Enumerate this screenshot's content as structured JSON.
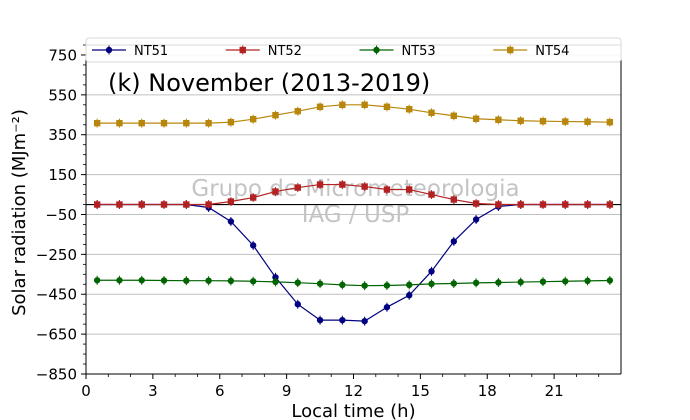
{
  "chart_data": {
    "type": "line",
    "title": "(k) November (2013-2019)",
    "xlabel": "Local time (h)",
    "ylabel": "Solar radiation (MJm⁻²)",
    "watermark": [
      "Grupo de Micrometeorologia",
      "IAG / USP"
    ],
    "xlim": [
      0,
      24
    ],
    "ylim": [
      -850,
      800
    ],
    "xticks": [
      0,
      3,
      6,
      9,
      12,
      15,
      18,
      21
    ],
    "yticks": [
      750,
      550,
      350,
      150,
      -50,
      -250,
      -450,
      -650,
      -850
    ],
    "grid": "horizontal",
    "zero_line": true,
    "legend_position": "top",
    "x": [
      0.5,
      1.5,
      2.5,
      3.5,
      4.5,
      5.5,
      6.5,
      7.5,
      8.5,
      9.5,
      10.5,
      11.5,
      12.5,
      13.5,
      14.5,
      15.5,
      16.5,
      17.5,
      18.5,
      19.5,
      20.5,
      21.5,
      22.5,
      23.5
    ],
    "series": [
      {
        "name": "NT51",
        "color": "#000080",
        "marker": "circle",
        "values": [
          0,
          0,
          0,
          0,
          0,
          -15,
          -85,
          -205,
          -365,
          -500,
          -580,
          -580,
          -585,
          -515,
          -455,
          -335,
          -185,
          -75,
          -10,
          0,
          0,
          0,
          0,
          0
        ]
      },
      {
        "name": "NT52",
        "color": "#b22222",
        "marker": "square",
        "values": [
          0,
          0,
          0,
          0,
          0,
          0,
          15,
          35,
          65,
          85,
          100,
          100,
          90,
          75,
          75,
          50,
          25,
          5,
          0,
          0,
          0,
          0,
          0,
          0
        ]
      },
      {
        "name": "NT53",
        "color": "#006400",
        "marker": "circle",
        "values": [
          -380,
          -380,
          -380,
          -381,
          -382,
          -382,
          -383,
          -385,
          -388,
          -392,
          -397,
          -403,
          -407,
          -406,
          -403,
          -398,
          -396,
          -393,
          -391,
          -389,
          -387,
          -385,
          -383,
          -381
        ]
      },
      {
        "name": "NT54",
        "color": "#b8860b",
        "marker": "square",
        "values": [
          408,
          408,
          408,
          408,
          408,
          408,
          413,
          428,
          448,
          468,
          490,
          500,
          500,
          490,
          478,
          460,
          445,
          430,
          425,
          420,
          418,
          416,
          415,
          413
        ]
      }
    ]
  }
}
